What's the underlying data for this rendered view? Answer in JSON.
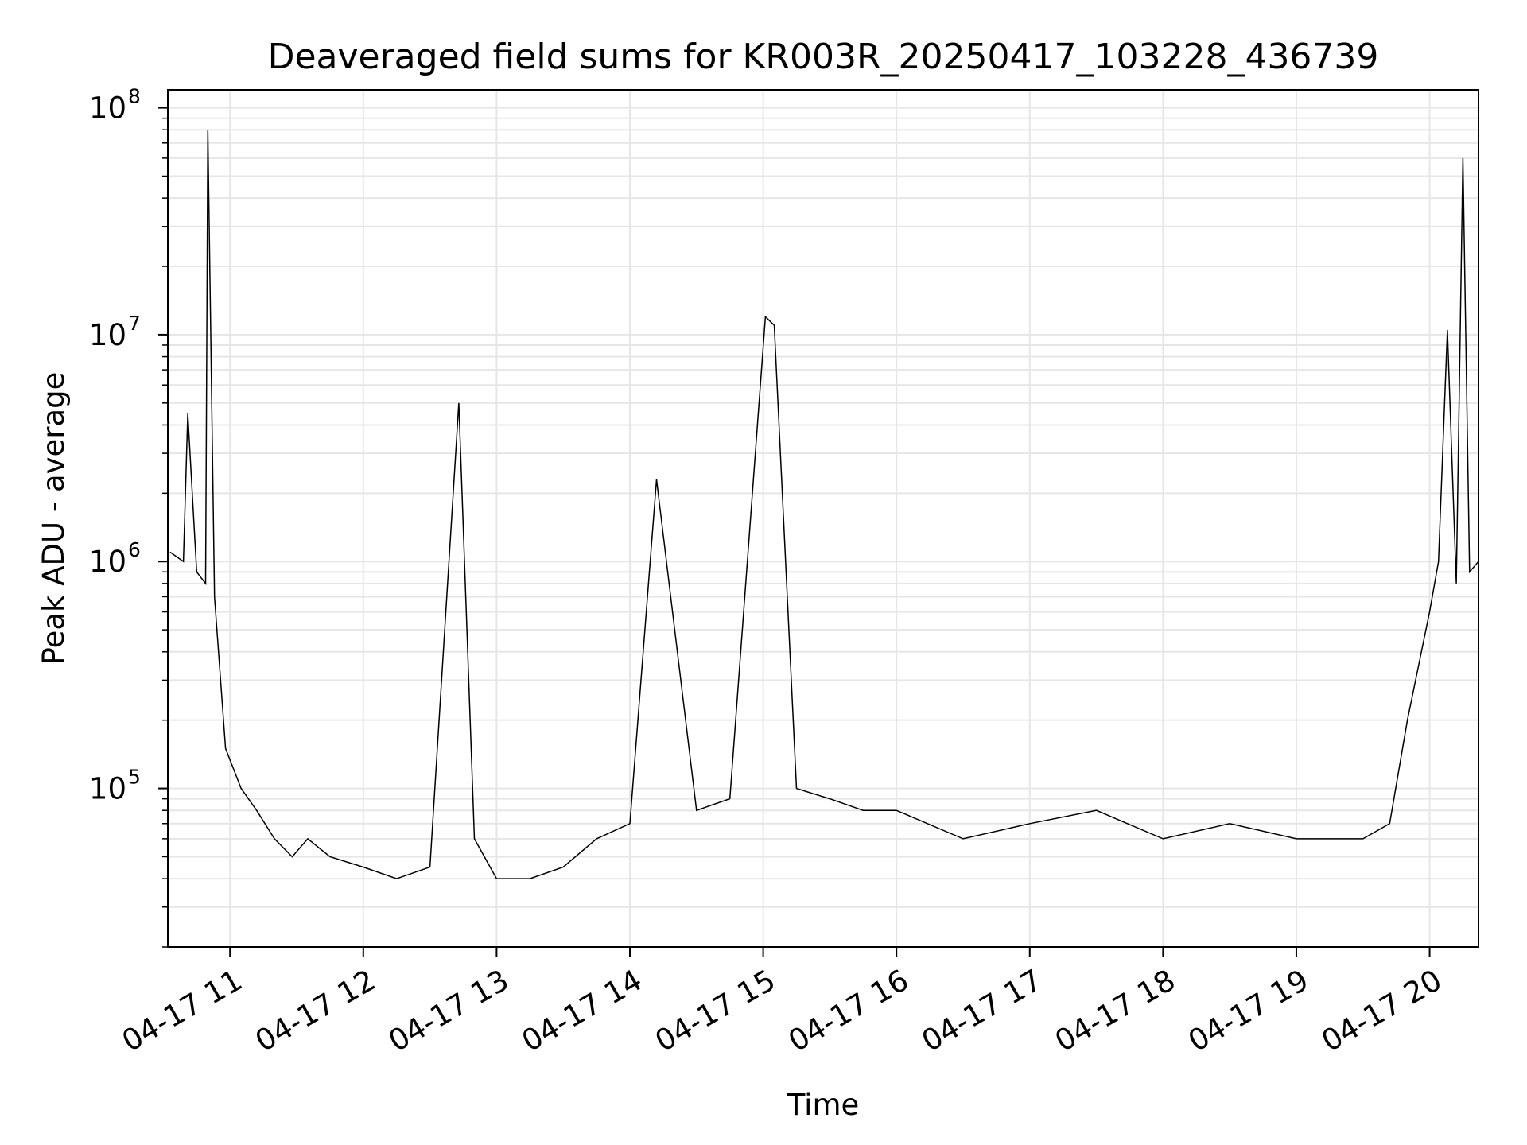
{
  "chart_data": {
    "type": "line",
    "title": "Deaveraged field sums for KR003R_20250417_103228_436739",
    "xlabel": "Time",
    "ylabel": "Peak ADU - average",
    "x_tick_labels": [
      "04-17 11",
      "04-17 12",
      "04-17 13",
      "04-17 14",
      "04-17 15",
      "04-17 16",
      "04-17 17",
      "04-17 18",
      "04-17 19",
      "04-17 20"
    ],
    "y_tick_labels": [
      {
        "base": "10",
        "exp": "5"
      },
      {
        "base": "10",
        "exp": "6"
      },
      {
        "base": "10",
        "exp": "7"
      },
      {
        "base": "10",
        "exp": "8"
      }
    ],
    "x_ticks": [
      "2025-04-17 11:00",
      "2025-04-17 12:00",
      "2025-04-17 13:00",
      "2025-04-17 14:00",
      "2025-04-17 15:00",
      "2025-04-17 16:00",
      "2025-04-17 17:00",
      "2025-04-17 18:00",
      "2025-04-17 19:00",
      "2025-04-17 20:00"
    ],
    "xlim": [
      "2025-04-17 10:32",
      "2025-04-17 20:22"
    ],
    "y_scale": "log",
    "ylim": [
      20000,
      120000000
    ],
    "y_ticks": [
      100000,
      1000000,
      10000000,
      100000000
    ],
    "grid": true,
    "line_color": "#000000",
    "grid_color": "#e6e6e6",
    "series": [
      {
        "x": [
          "2025-04-17 10:33",
          "2025-04-17 10:39",
          "2025-04-17 10:41",
          "2025-04-17 10:45",
          "2025-04-17 10:49",
          "2025-04-17 10:50",
          "2025-04-17 10:53",
          "2025-04-17 10:58",
          "2025-04-17 11:05",
          "2025-04-17 11:12",
          "2025-04-17 11:20",
          "2025-04-17 11:28",
          "2025-04-17 11:35",
          "2025-04-17 11:45",
          "2025-04-17 12:00",
          "2025-04-17 12:15",
          "2025-04-17 12:30",
          "2025-04-17 12:43",
          "2025-04-17 12:50",
          "2025-04-17 13:00",
          "2025-04-17 13:15",
          "2025-04-17 13:30",
          "2025-04-17 13:45",
          "2025-04-17 14:00",
          "2025-04-17 14:12",
          "2025-04-17 14:30",
          "2025-04-17 14:45",
          "2025-04-17 15:01",
          "2025-04-17 15:05",
          "2025-04-17 15:15",
          "2025-04-17 15:30",
          "2025-04-17 15:45",
          "2025-04-17 16:00",
          "2025-04-17 16:30",
          "2025-04-17 17:00",
          "2025-04-17 17:30",
          "2025-04-17 18:00",
          "2025-04-17 18:30",
          "2025-04-17 19:00",
          "2025-04-17 19:30",
          "2025-04-17 19:42",
          "2025-04-17 19:50",
          "2025-04-17 20:00",
          "2025-04-17 20:04",
          "2025-04-17 20:08",
          "2025-04-17 20:12",
          "2025-04-17 20:15",
          "2025-04-17 20:18",
          "2025-04-17 20:22"
        ],
        "y": [
          1100000,
          1000000,
          4500000,
          900000,
          800000,
          80000000,
          700000,
          150000,
          100000,
          80000,
          60000,
          50000,
          60000,
          50000,
          45000,
          40000,
          45000,
          5000000,
          60000,
          40000,
          40000,
          45000,
          60000,
          70000,
          2300000,
          80000,
          90000,
          12000000,
          11000000,
          100000,
          90000,
          80000,
          80000,
          60000,
          70000,
          80000,
          60000,
          70000,
          60000,
          60000,
          70000,
          200000,
          600000,
          1000000,
          10500000,
          800000,
          60000000,
          900000,
          1000000
        ]
      }
    ]
  }
}
